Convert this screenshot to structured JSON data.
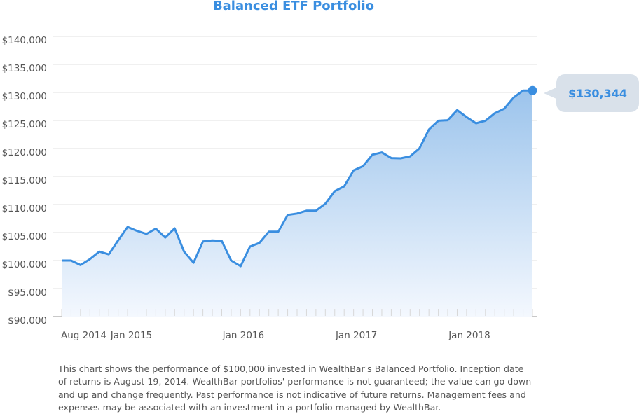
{
  "chart_data": {
    "type": "area",
    "title": "Balanced ETF Portfolio",
    "xlabel": "",
    "ylabel": "",
    "ylim": [
      90000,
      140000
    ],
    "yticks": [
      90000,
      95000,
      100000,
      105000,
      110000,
      115000,
      120000,
      125000,
      130000,
      135000,
      140000
    ],
    "ytick_labels": [
      "$90,000",
      "$95,000",
      "$100,000",
      "$105,000",
      "$110,000",
      "$115,000",
      "$120,000",
      "$125,000",
      "$130,000",
      "$135,000",
      "$140,000"
    ],
    "xtick_labels": [
      {
        "label": "Aug 2014",
        "index": 0
      },
      {
        "label": "Jan 2015",
        "index": 7.4
      },
      {
        "label": "Jan 2016",
        "index": 19.3
      },
      {
        "label": "Jan 2017",
        "index": 31.3
      },
      {
        "label": "Jan 2018",
        "index": 43.3
      }
    ],
    "grid": true,
    "values": [
      100000,
      100000,
      99200,
      100250,
      101600,
      101100,
      103600,
      106000,
      105300,
      104750,
      105700,
      104100,
      105750,
      101600,
      99600,
      103400,
      103600,
      103500,
      100000,
      99000,
      102500,
      103150,
      105150,
      105150,
      108150,
      108400,
      108900,
      108900,
      110150,
      112400,
      113250,
      116100,
      116850,
      118900,
      119300,
      118300,
      118250,
      118600,
      120050,
      123400,
      124950,
      125050,
      126850,
      125600,
      124500,
      124950,
      126300,
      127100,
      129100,
      130350,
      130344
    ],
    "final_value_label": "$130,344",
    "line_color": "#3a8ee0"
  },
  "footer": "This chart shows the performance of $100,000 invested in WealthBar's Balanced Portfolio. Inception date of returns is August 19, 2014. WealthBar portfolios' performance is not guaranteed; the value can go down and up and change frequently. Past performance is not indicative of future returns. Management fees and expenses may be associated with an investment in a portfolio managed by WealthBar."
}
